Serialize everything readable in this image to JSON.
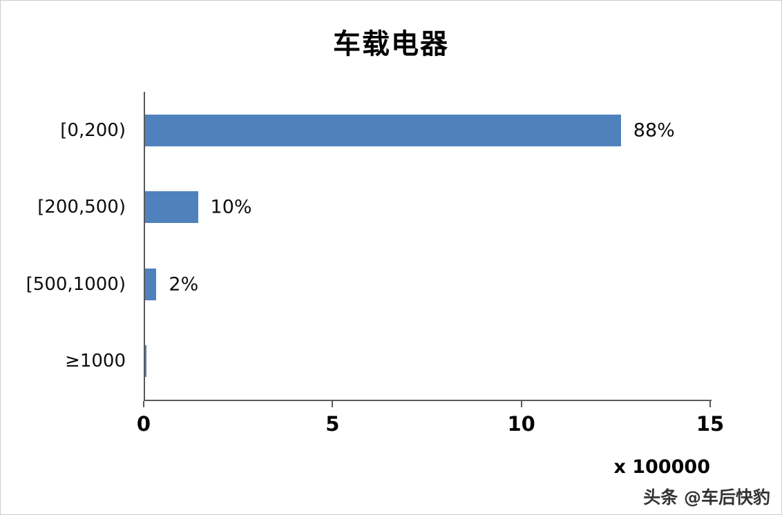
{
  "chart": {
    "watermark": "头条 @车后快豹"
  },
  "chart_data": {
    "type": "bar",
    "orientation": "horizontal",
    "title": "车载电器",
    "categories": [
      "[0,200)",
      "[200,500)",
      "[500,1000)",
      "≥1000"
    ],
    "values": [
      12.6,
      1.4,
      0.3,
      0.04
    ],
    "value_labels": [
      "88%",
      "10%",
      "2%",
      ""
    ],
    "xlabel": "",
    "ylabel": "",
    "xlim": [
      0,
      15
    ],
    "xticks": [
      0,
      5,
      10,
      15
    ],
    "unit_note": "x 100000",
    "bar_color": "#4f81bd",
    "axis_color": "#595959",
    "grid": false,
    "legend": false
  }
}
